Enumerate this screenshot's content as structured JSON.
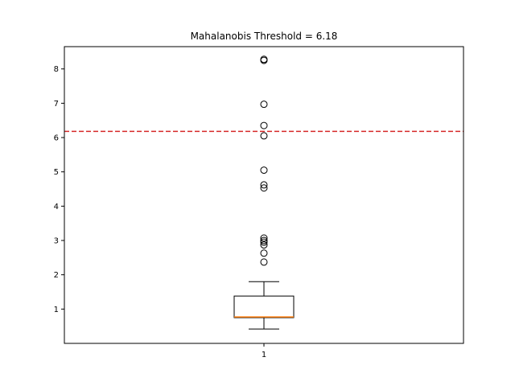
{
  "chart_data": {
    "type": "box",
    "title": "Mahalanobis Threshold = 6.18",
    "xlabel": "",
    "ylabel": "",
    "categories": [
      "1"
    ],
    "ylim": [
      0.0,
      8.65
    ],
    "yticks": [
      1,
      2,
      3,
      4,
      5,
      6,
      7,
      8
    ],
    "grid": false,
    "boxes": [
      {
        "category": "1",
        "whisker_low": 0.42,
        "q1": 0.75,
        "median": 0.77,
        "q3": 1.38,
        "whisker_high": 1.8,
        "outliers": [
          2.37,
          2.63,
          2.87,
          2.95,
          3.0,
          3.07,
          4.53,
          4.62,
          5.05,
          6.05,
          6.35,
          6.97,
          8.25,
          8.28
        ]
      }
    ],
    "threshold": {
      "value": 6.18,
      "color": "#d62728",
      "style": "dashed"
    },
    "colors": {
      "box": "#000000",
      "median": "#ff7f0e",
      "outlier": "#000000"
    }
  }
}
